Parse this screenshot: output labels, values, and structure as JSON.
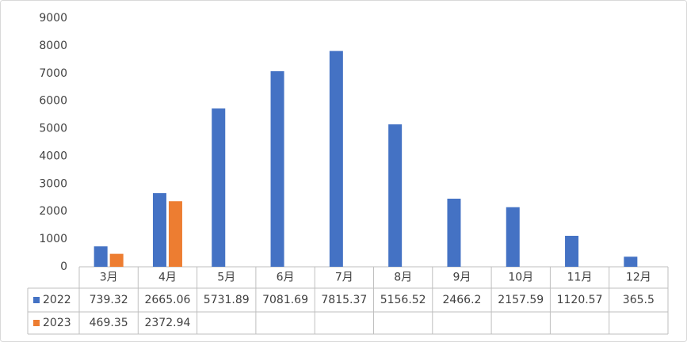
{
  "chart_data": {
    "type": "bar",
    "categories": [
      "3月",
      "4月",
      "5月",
      "6月",
      "7月",
      "8月",
      "9月",
      "10月",
      "11月",
      "12月"
    ],
    "series": [
      {
        "name": "2022",
        "color": "#4472c4",
        "values": [
          739.32,
          2665.06,
          5731.89,
          7081.69,
          7815.37,
          5156.52,
          2466.2,
          2157.59,
          1120.57,
          365.5
        ]
      },
      {
        "name": "2023",
        "color": "#ed7d31",
        "values": [
          469.35,
          2372.94,
          null,
          null,
          null,
          null,
          null,
          null,
          null,
          null
        ]
      }
    ],
    "ylim": [
      0,
      9000
    ],
    "yticks": [
      0,
      1000,
      2000,
      3000,
      4000,
      5000,
      6000,
      7000,
      8000,
      9000
    ],
    "grid": false
  }
}
